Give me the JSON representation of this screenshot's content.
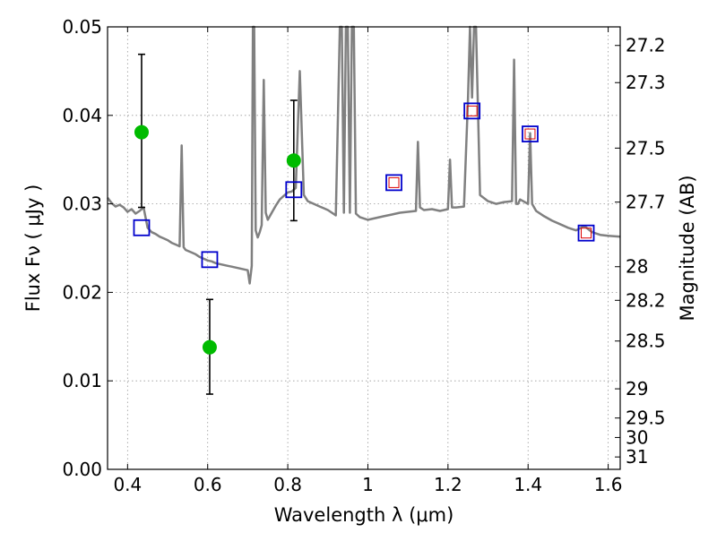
{
  "chart_data": {
    "type": "scatter",
    "title": "",
    "xlabel": "Wavelength  λ (μm)",
    "ylabel": "Flux  Fν  ( μJy )",
    "y2label": "Magnitude (AB)",
    "xlim": [
      0.35,
      1.63
    ],
    "ylim": [
      0.0,
      0.05
    ],
    "grid": true,
    "x_ticks": [
      0.4,
      0.6,
      0.8,
      1.0,
      1.2,
      1.4,
      1.6
    ],
    "x_tick_labels": [
      "0.4",
      "0.6",
      "0.8",
      "1",
      "1.2",
      "1.4",
      "1.6"
    ],
    "y_ticks": [
      0.0,
      0.01,
      0.02,
      0.03,
      0.04,
      0.05
    ],
    "y_tick_labels": [
      "0.00",
      "0.01",
      "0.02",
      "0.03",
      "0.04",
      "0.05"
    ],
    "y2_ticks": [
      {
        "label": "27.2",
        "flux": 0.0479
      },
      {
        "label": "27.3",
        "flux": 0.0437
      },
      {
        "label": "27.5",
        "flux": 0.0363
      },
      {
        "label": "27.7",
        "flux": 0.0302
      },
      {
        "label": "28",
        "flux": 0.0229
      },
      {
        "label": "28.2",
        "flux": 0.0191
      },
      {
        "label": "28.5",
        "flux": 0.0145
      },
      {
        "label": "29",
        "flux": 0.0091
      },
      {
        "label": "29.5",
        "flux": 0.0058
      },
      {
        "label": "30",
        "flux": 0.0036
      },
      {
        "label": "31",
        "flux": 0.0014
      }
    ],
    "colors": {
      "template": "#808080",
      "observed": "#00bb00",
      "model": "#0000cc",
      "model_inner": "#dd0000",
      "errorbar": "#000000",
      "grid": "#999999"
    },
    "series": [
      {
        "kind": "line",
        "x": [
          0.35,
          0.36,
          0.37,
          0.38,
          0.39,
          0.4,
          0.41,
          0.42,
          0.43,
          0.44,
          0.45,
          0.46,
          0.47,
          0.48,
          0.49,
          0.5,
          0.51,
          0.52,
          0.53,
          0.535,
          0.54,
          0.545,
          0.55,
          0.56,
          0.57,
          0.58,
          0.59,
          0.6,
          0.61,
          0.62,
          0.63,
          0.64,
          0.65,
          0.66,
          0.67,
          0.68,
          0.69,
          0.7,
          0.705,
          0.71,
          0.713,
          0.716,
          0.72,
          0.725,
          0.73,
          0.735,
          0.74,
          0.745,
          0.75,
          0.76,
          0.77,
          0.78,
          0.79,
          0.8,
          0.81,
          0.82,
          0.83,
          0.84,
          0.85,
          0.86,
          0.87,
          0.88,
          0.89,
          0.9,
          0.91,
          0.92,
          0.93,
          0.935,
          0.94,
          0.945,
          0.95,
          0.955,
          0.96,
          0.965,
          0.97,
          0.98,
          1.0,
          1.02,
          1.04,
          1.06,
          1.08,
          1.1,
          1.12,
          1.125,
          1.13,
          1.14,
          1.16,
          1.18,
          1.2,
          1.205,
          1.21,
          1.22,
          1.24,
          1.25,
          1.255,
          1.26,
          1.265,
          1.27,
          1.28,
          1.3,
          1.32,
          1.34,
          1.36,
          1.365,
          1.37,
          1.375,
          1.38,
          1.4,
          1.405,
          1.41,
          1.42,
          1.44,
          1.46,
          1.48,
          1.5,
          1.52,
          1.54,
          1.56,
          1.58,
          1.6,
          1.63
        ],
        "y": [
          0.0307,
          0.0301,
          0.0297,
          0.0299,
          0.0296,
          0.0291,
          0.0294,
          0.0289,
          0.0292,
          0.0296,
          0.0273,
          0.0268,
          0.0266,
          0.0263,
          0.0261,
          0.0259,
          0.0256,
          0.0254,
          0.0252,
          0.0366,
          0.0251,
          0.0248,
          0.0247,
          0.0245,
          0.0243,
          0.024,
          0.0238,
          0.0236,
          0.0235,
          0.0233,
          0.0232,
          0.0231,
          0.023,
          0.0229,
          0.0228,
          0.0227,
          0.0226,
          0.0225,
          0.021,
          0.023,
          0.05,
          0.05,
          0.027,
          0.0262,
          0.0268,
          0.0276,
          0.044,
          0.029,
          0.0282,
          0.029,
          0.0298,
          0.0305,
          0.0309,
          0.0313,
          0.0314,
          0.0318,
          0.045,
          0.031,
          0.0303,
          0.0301,
          0.0299,
          0.0297,
          0.0295,
          0.0293,
          0.029,
          0.0287,
          0.05,
          0.05,
          0.029,
          0.05,
          0.05,
          0.029,
          0.05,
          0.05,
          0.0289,
          0.0285,
          0.0282,
          0.0284,
          0.0286,
          0.0288,
          0.029,
          0.0291,
          0.0292,
          0.037,
          0.0296,
          0.0293,
          0.0294,
          0.0292,
          0.0294,
          0.035,
          0.0296,
          0.0296,
          0.0297,
          0.042,
          0.05,
          0.042,
          0.05,
          0.05,
          0.031,
          0.0303,
          0.03,
          0.0302,
          0.0303,
          0.0463,
          0.03,
          0.03,
          0.0305,
          0.03,
          0.038,
          0.03,
          0.0292,
          0.0286,
          0.0281,
          0.0277,
          0.0273,
          0.027,
          0.0275,
          0.0268,
          0.0265,
          0.0264,
          0.0263
        ]
      },
      {
        "kind": "points_errorbars",
        "x": [
          0.435,
          0.605,
          0.815
        ],
        "y": [
          0.0381,
          0.0138,
          0.0349
        ],
        "yerr_low": [
          0.0296,
          0.0085,
          0.0281
        ],
        "yerr_high": [
          0.0469,
          0.0192,
          0.0417
        ]
      },
      {
        "kind": "open_squares",
        "x": [
          0.435,
          0.605,
          0.815,
          1.065,
          1.26,
          1.405,
          1.545
        ],
        "y": [
          0.0273,
          0.0237,
          0.0316,
          0.0324,
          0.0405,
          0.0379,
          0.0267
        ]
      },
      {
        "kind": "inner_squares",
        "x": [
          1.065,
          1.26,
          1.405,
          1.545
        ],
        "y": [
          0.0324,
          0.0405,
          0.0379,
          0.0267
        ]
      }
    ]
  }
}
